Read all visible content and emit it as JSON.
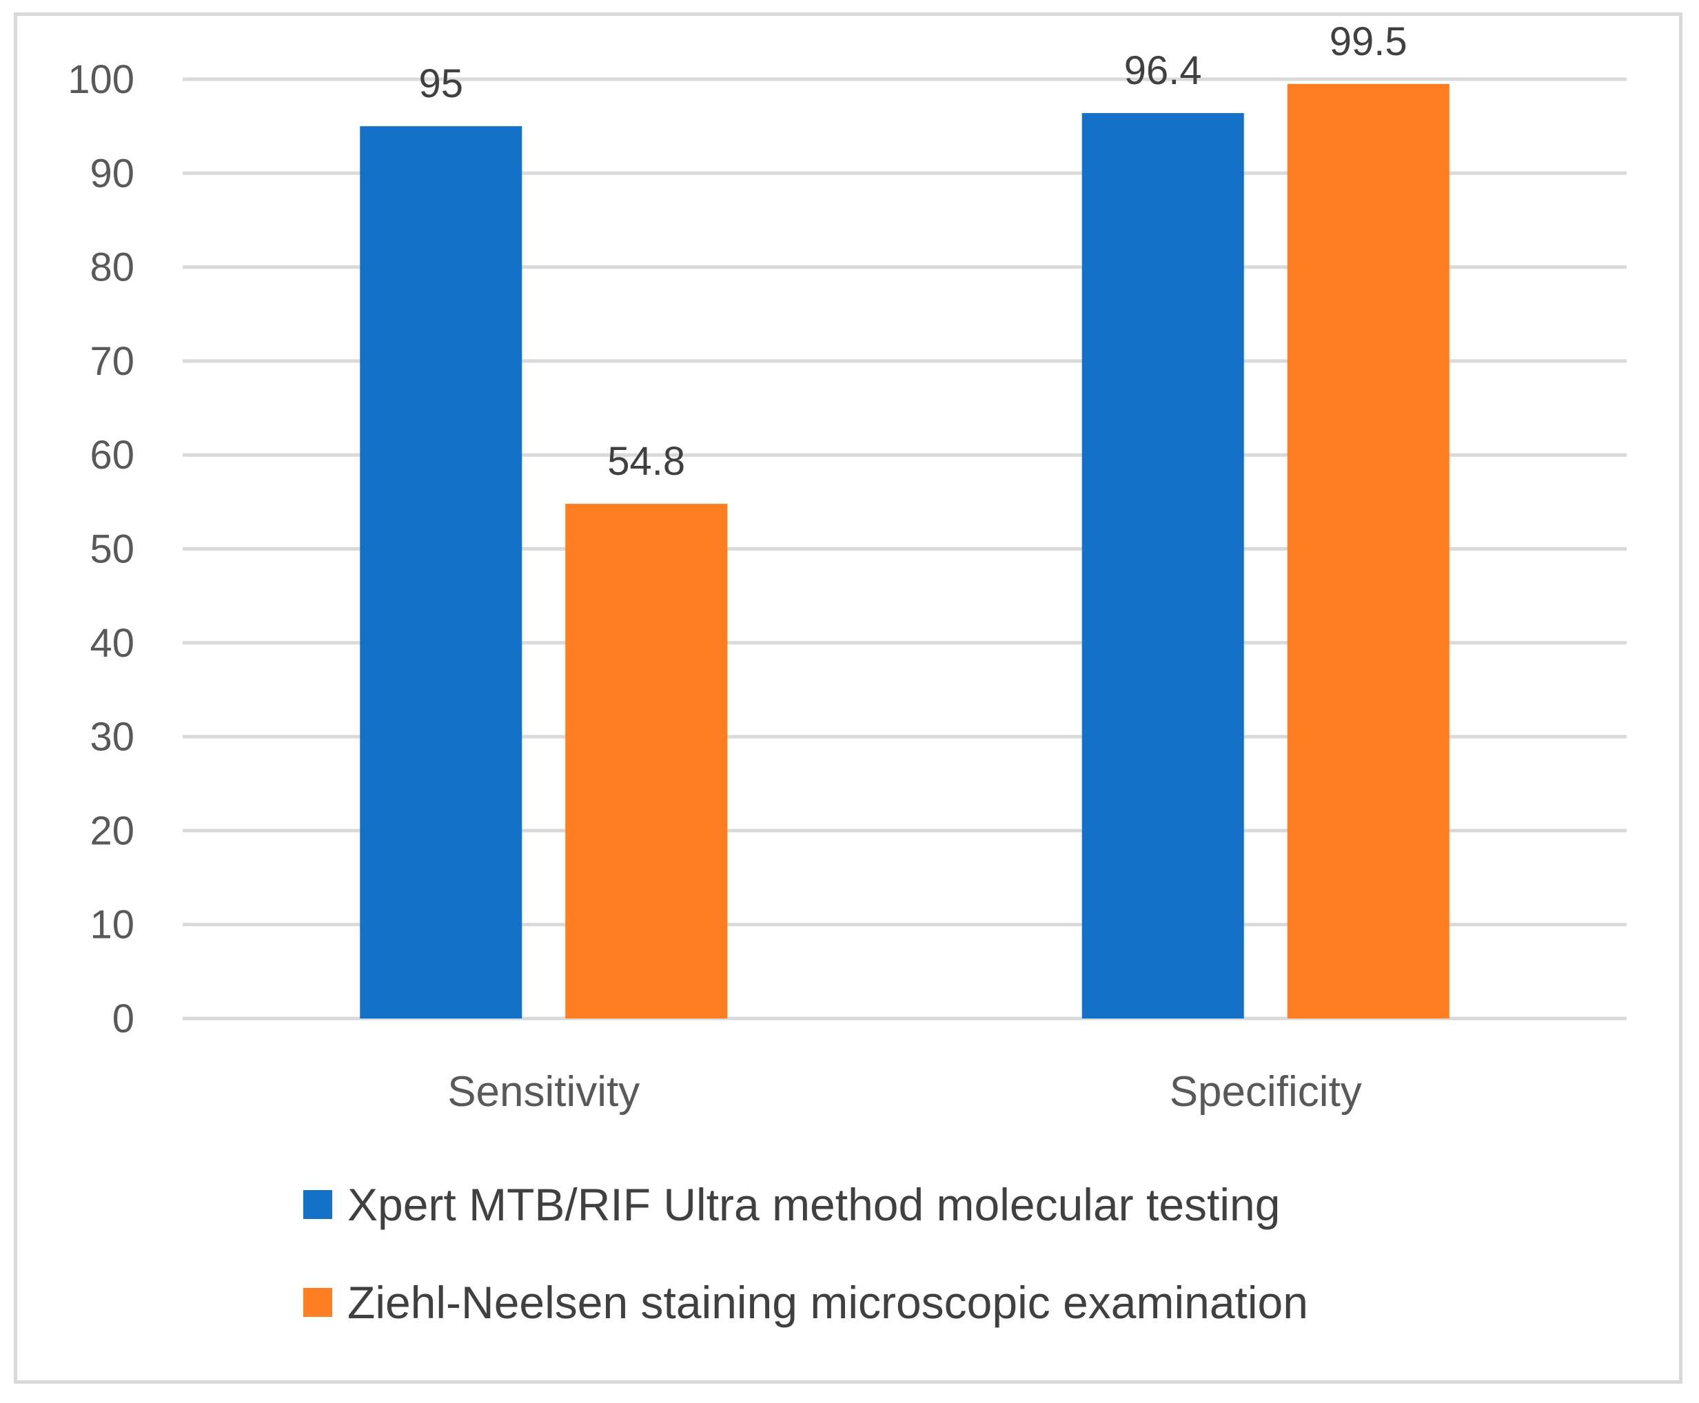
{
  "chart_data": {
    "type": "bar",
    "title": "",
    "xlabel": "",
    "ylabel": "",
    "categories": [
      "Sensitivity",
      "Specificity"
    ],
    "series": [
      {
        "name": "Xpert MTB/RIF Ultra method molecular testing",
        "values": [
          95,
          96.4
        ],
        "labels": [
          "95",
          "96.4"
        ],
        "color": "#1570C8"
      },
      {
        "name": " Ziehl-Neelsen staining microscopic examination",
        "values": [
          54.8,
          99.5
        ],
        "labels": [
          "54.8",
          "99.5"
        ],
        "color": "#FE7E21"
      }
    ],
    "ylim": [
      0,
      100
    ],
    "yticks": [
      0,
      10,
      20,
      30,
      40,
      50,
      60,
      70,
      80,
      90,
      100
    ],
    "grid": true,
    "legend": "bottom"
  },
  "colors": {
    "gridline": "#d9d9d9",
    "axis_text": "#595959"
  }
}
